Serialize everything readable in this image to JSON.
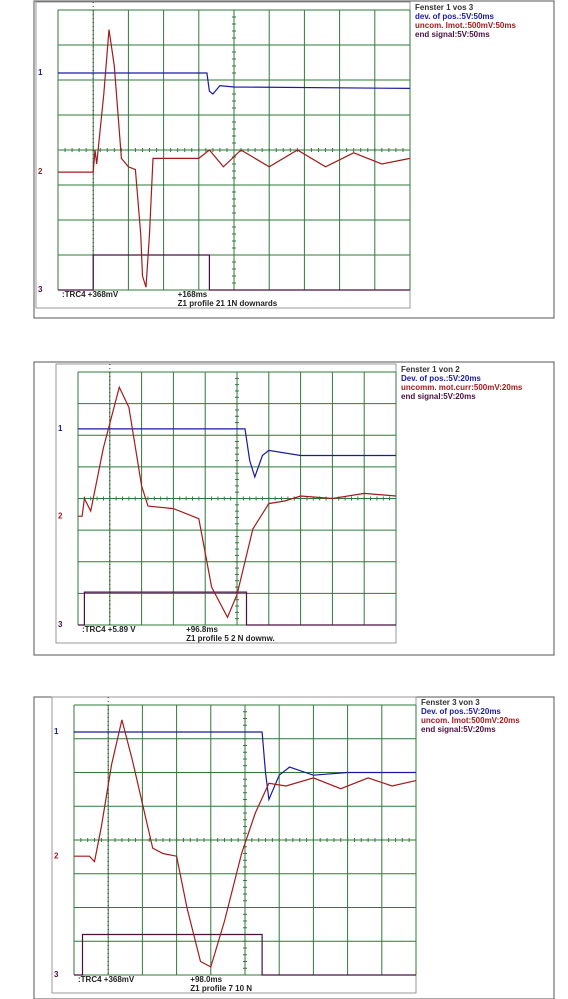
{
  "panels": [
    {
      "window": "Fenster 1 vos 3",
      "legend": [
        "dev. of pos.:5V:50ms",
        "uncom. Imot.:500mV:50ms",
        "end signal:5V:50ms"
      ],
      "channels": [
        "1",
        "2",
        "3"
      ],
      "cursor_readout": ":TRC4 +368mV",
      "time_readout": "+168ms",
      "caption": "Z1 profile 21 1N downards"
    },
    {
      "window": "Fenster 1 von 2",
      "legend": [
        "Dev. of pos.:5V:20ms",
        "uncomm. mot.curr:500mV:20ms",
        "end signal:5V:20ms"
      ],
      "channels": [
        "1",
        "2",
        "3"
      ],
      "cursor_readout": ":TRC4 +5.89 V",
      "time_readout": "+96.8ms",
      "caption": "Z1  profile 5  2 N downw."
    },
    {
      "window": "Fenster 3 von 3",
      "legend": [
        "Dev. of pos.:5V:20ms",
        "uncom. Imot:500mV:20ms",
        "end signal:5V:20ms"
      ],
      "channels": [
        "1",
        "2",
        "3"
      ],
      "cursor_readout": ":TRC4 +368mV",
      "time_readout": "+98.0ms",
      "caption": "Z1 profile 7  10 N"
    }
  ]
}
